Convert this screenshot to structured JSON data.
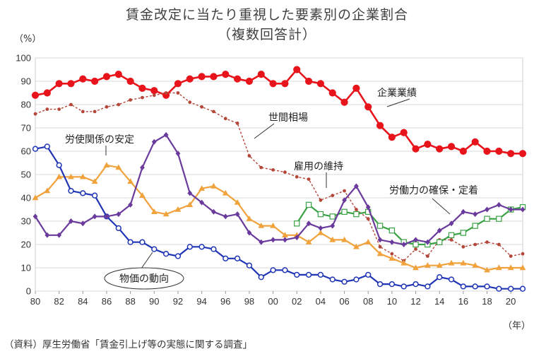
{
  "chart_data": {
    "type": "line",
    "title": "賃金改定に当たり重視した要素別の企業割合",
    "subtitle": "（複数回答計）",
    "ylabel": "（%）",
    "xlabel": "（年）",
    "source": "（資料）厚生労働省「賃金引上げ等の実態に関する調査」",
    "x": [
      1980,
      1981,
      1982,
      1983,
      1984,
      1985,
      1986,
      1987,
      1988,
      1989,
      1990,
      1991,
      1992,
      1993,
      1994,
      1995,
      1996,
      1997,
      1998,
      1999,
      2000,
      2001,
      2002,
      2003,
      2004,
      2005,
      2006,
      2007,
      2008,
      2009,
      2010,
      2011,
      2012,
      2013,
      2014,
      2015,
      2016,
      2017,
      2018,
      2019,
      2020,
      2021
    ],
    "x_tick_labels": [
      "80",
      "82",
      "84",
      "86",
      "88",
      "90",
      "92",
      "94",
      "96",
      "98",
      "00",
      "02",
      "04",
      "06",
      "08",
      "10",
      "12",
      "14",
      "16",
      "18",
      "20"
    ],
    "ylim": [
      0,
      100
    ],
    "y_ticks": [
      0,
      10,
      20,
      30,
      40,
      50,
      60,
      70,
      80,
      90,
      100
    ],
    "grid": true,
    "legend": "inline-labels",
    "series": [
      {
        "name": "企業業績",
        "color": "#e8141b",
        "marker": "filled-circle",
        "line": "solid",
        "values": [
          84,
          85,
          89,
          89,
          91,
          90,
          92,
          93,
          90,
          87,
          86,
          84,
          89,
          91,
          92,
          92,
          93,
          91,
          90,
          93,
          89,
          89,
          95,
          90,
          89,
          85,
          81,
          87,
          79,
          71,
          66,
          68,
          61,
          63,
          61,
          62,
          60,
          64,
          60,
          60,
          59,
          59
        ]
      },
      {
        "name": "世間相場",
        "color": "#b3473a",
        "marker": "small-filled-circle",
        "line": "dashed",
        "values": [
          76,
          78,
          78,
          80,
          77,
          77,
          79,
          80,
          82,
          83,
          84,
          85,
          85,
          81,
          79,
          77,
          74,
          72,
          58,
          53,
          52,
          51,
          49,
          48,
          39,
          41,
          43,
          35,
          31,
          19,
          16,
          13,
          18,
          15,
          22,
          22,
          19,
          20,
          21,
          20,
          15,
          16
        ]
      },
      {
        "name": "労使関係の安定",
        "color": "#f0a23c",
        "marker": "filled-triangle",
        "line": "solid",
        "values": [
          40,
          43,
          49,
          49,
          49,
          47,
          54,
          53,
          47,
          41,
          34,
          33,
          35,
          37,
          44,
          45,
          42,
          38,
          31,
          28,
          28,
          24,
          24,
          21,
          25,
          22,
          22,
          19,
          21,
          16,
          14,
          12,
          10,
          11,
          11,
          12,
          12,
          11,
          9,
          10,
          10,
          10
        ]
      },
      {
        "name": "物価の動向",
        "color": "#1f35b5",
        "marker": "hollow-circle",
        "line": "solid",
        "values": [
          61,
          62,
          54,
          43,
          42,
          41,
          32,
          27,
          21,
          21,
          18,
          16,
          15,
          19,
          19,
          18,
          14,
          14,
          11,
          6,
          9,
          9,
          7,
          7,
          7,
          5,
          4,
          5,
          7,
          3,
          3,
          2,
          3,
          2,
          6,
          5,
          2,
          2,
          2,
          1,
          1,
          1
        ]
      },
      {
        "name": "雇用の維持",
        "color": "#3aa144",
        "marker": "hollow-square",
        "line": "solid",
        "values": [
          null,
          null,
          null,
          null,
          null,
          null,
          null,
          null,
          null,
          null,
          null,
          null,
          null,
          null,
          null,
          null,
          null,
          null,
          null,
          null,
          null,
          null,
          29,
          37,
          33,
          32,
          34,
          33,
          34,
          28,
          26,
          21,
          20,
          20,
          21,
          24,
          25,
          28,
          31,
          31,
          35,
          36
        ]
      },
      {
        "name": "労働力の確保・定着",
        "color": "#6a3a9c",
        "marker": "filled-diamond",
        "line": "solid",
        "values": [
          32,
          24,
          24,
          30,
          29,
          32,
          32,
          33,
          37,
          53,
          64,
          67,
          59,
          42,
          38,
          34,
          32,
          33,
          25,
          21,
          22,
          22,
          23,
          29,
          27,
          28,
          39,
          45,
          36,
          22,
          21,
          20,
          22,
          21,
          26,
          29,
          34,
          33,
          35,
          37,
          35,
          35
        ]
      }
    ]
  }
}
